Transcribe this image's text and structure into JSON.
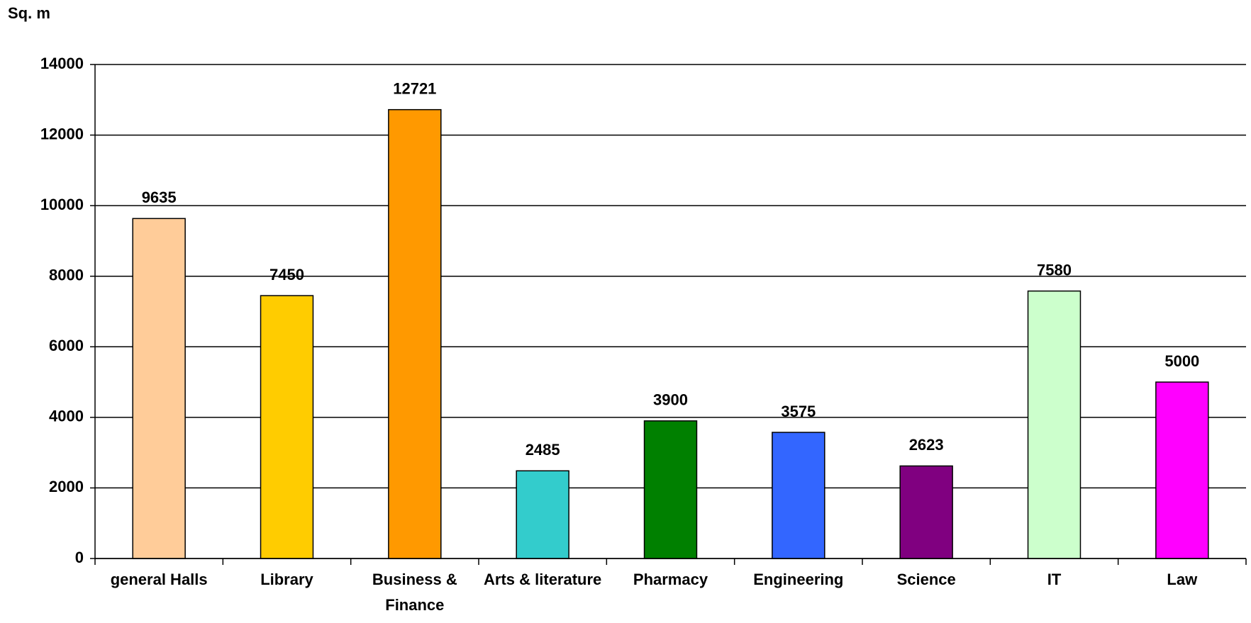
{
  "chart_data": {
    "type": "bar",
    "ylabel": "Sq. m",
    "categories": [
      "general Halls",
      "Library",
      "Business & Finance",
      "Arts & literature",
      "Pharmacy",
      "Engineering",
      "Science",
      "IT",
      "Law"
    ],
    "values": [
      9635,
      7450,
      12721,
      2485,
      3900,
      3575,
      2623,
      7580,
      5000
    ],
    "colors": [
      "#ffcc99",
      "#ffcc00",
      "#ff9900",
      "#33cccc",
      "#008000",
      "#3366ff",
      "#800080",
      "#ccffcc",
      "#ff00ff"
    ],
    "ylim": [
      0,
      14000
    ],
    "yticks": [
      0,
      2000,
      4000,
      6000,
      8000,
      10000,
      12000,
      14000
    ],
    "grid": true
  }
}
